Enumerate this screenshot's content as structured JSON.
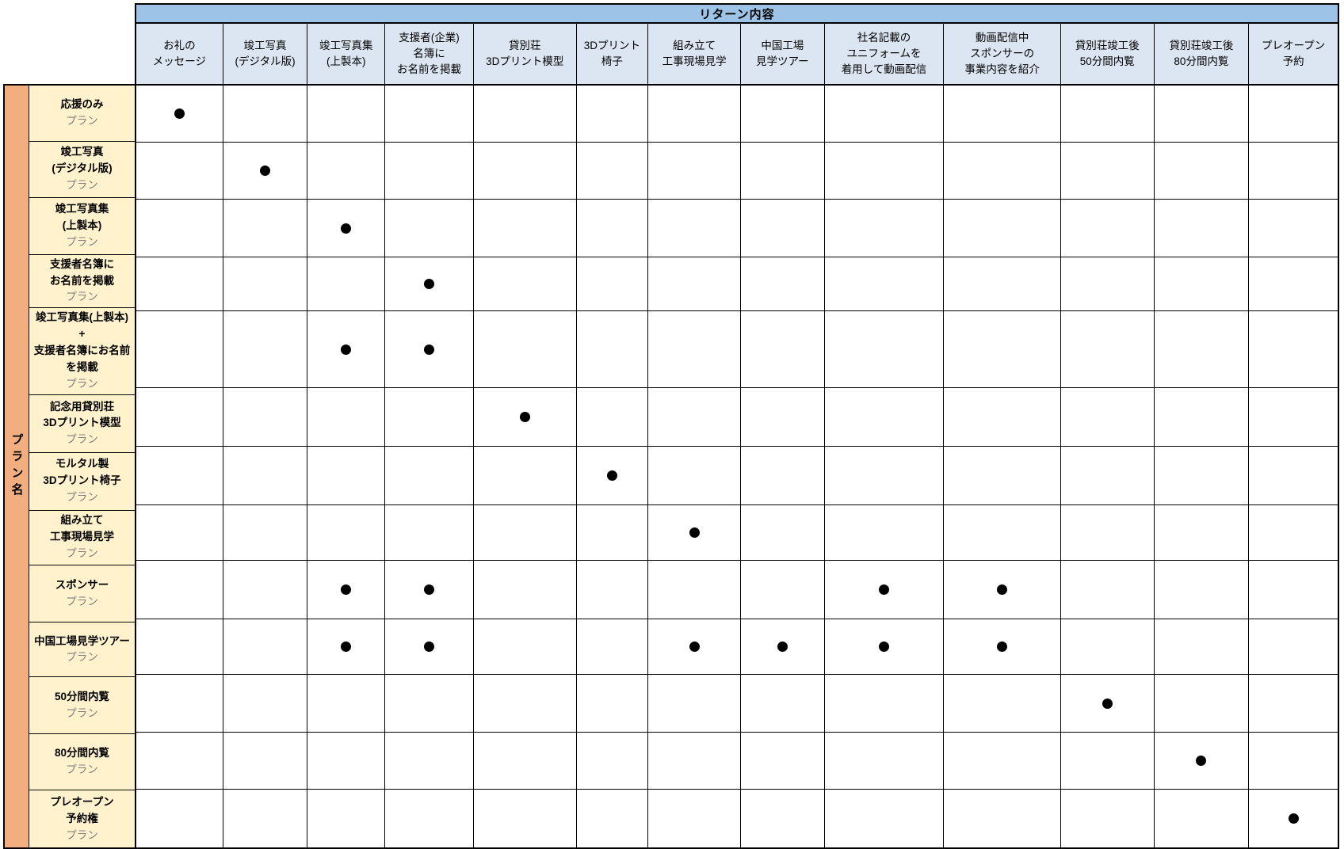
{
  "table": {
    "return_header": "リターン内容",
    "plan_axis_label": "プラン名",
    "plan_suffix": "プラン",
    "marker": "●",
    "columns": [
      "お礼の\nメッセージ",
      "竣工写真\n(デジタル版)",
      "竣工写真集\n(上製本)",
      "支援者(企業)\n名簿に\nお名前を掲載",
      "貸別荘\n3Dプリント模型",
      "3Dプリント\n椅子",
      "組み立て\n工事現場見学",
      "中国工場\n見学ツアー",
      "社名記載の\nユニフォームを\n着用して動画配信",
      "動画配信中\nスポンサーの\n事業内容を紹介",
      "貸別荘竣工後\n50分間内覧",
      "貸別荘竣工後\n80分間内覧",
      "プレオープン\n予約"
    ],
    "rows": [
      {
        "plan": "応援のみ",
        "returns": [
          1
        ]
      },
      {
        "plan": "竣工写真\n(デジタル版)",
        "returns": [
          2
        ]
      },
      {
        "plan": "竣工写真集\n(上製本)",
        "returns": [
          3
        ]
      },
      {
        "plan": "支援者名簿に\nお名前を掲載",
        "returns": [
          4
        ]
      },
      {
        "plan": "竣工写真集(上製本)\n+\n支援者名簿にお名前\nを掲載",
        "returns": [
          3,
          4
        ]
      },
      {
        "plan": "記念用貸別荘\n3Dプリント模型",
        "returns": [
          5
        ]
      },
      {
        "plan": "モルタル製\n3Dプリント椅子",
        "returns": [
          6
        ]
      },
      {
        "plan": "組み立て\n工事現場見学",
        "returns": [
          7
        ]
      },
      {
        "plan": "スポンサー",
        "returns": [
          3,
          4,
          9,
          10
        ]
      },
      {
        "plan": "中国工場見学ツアー",
        "returns": [
          3,
          4,
          7,
          8,
          9,
          10
        ]
      },
      {
        "plan": "50分間内覧",
        "returns": [
          11
        ]
      },
      {
        "plan": "80分間内覧",
        "returns": [
          12
        ]
      },
      {
        "plan": "プレオープン\n予約権",
        "returns": [
          13
        ]
      }
    ],
    "colors": {
      "band_blue": "#9DC3E6",
      "header_blue": "#DCE6F2",
      "plan_orange": "#F3AE7F",
      "plan_yellow": "#FFF2CC",
      "grid_line": "#000000",
      "dot_black": "#000000",
      "plan_suffix_gray": "#7F7F7F"
    }
  }
}
